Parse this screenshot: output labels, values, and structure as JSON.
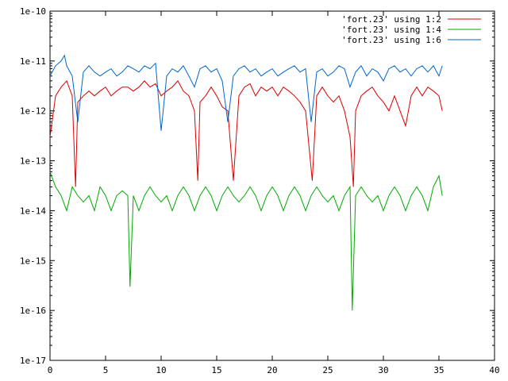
{
  "chart_data": {
    "type": "line",
    "title": "",
    "xlabel": "",
    "ylabel": "",
    "xlim": [
      0,
      40
    ],
    "ylim": [
      1e-17,
      1e-10
    ],
    "yscale": "log",
    "grid": false,
    "legend_position": "top-right",
    "x_ticks": [
      0,
      5,
      10,
      15,
      20,
      25,
      30,
      35,
      40
    ],
    "x_tick_labels": [
      "0",
      "5",
      "10",
      "15",
      "20",
      "25",
      "30",
      "35",
      "40"
    ],
    "y_ticks": [
      1e-17,
      1e-16,
      1e-15,
      1e-14,
      1e-13,
      1e-12,
      1e-11,
      1e-10
    ],
    "y_tick_labels": [
      "1e-17",
      "1e-16",
      "1e-15",
      "1e-14",
      "1e-13",
      "1e-12",
      "1e-11",
      "1e-10"
    ],
    "series": [
      {
        "name": "'fort.23' using 1:2",
        "color": "#dd0000",
        "x": [
          0.0,
          0.5,
          1.0,
          1.5,
          2.0,
          2.3,
          2.5,
          3.0,
          3.5,
          4.0,
          4.5,
          5.0,
          5.5,
          6.0,
          6.5,
          7.0,
          7.5,
          8.0,
          8.5,
          9.0,
          9.5,
          10.0,
          10.5,
          11.0,
          11.5,
          12.0,
          12.5,
          13.0,
          13.3,
          13.5,
          14.0,
          14.5,
          15.0,
          15.5,
          16.0,
          16.5,
          17.0,
          17.5,
          18.0,
          18.5,
          19.0,
          19.5,
          20.0,
          20.5,
          21.0,
          21.5,
          22.0,
          22.5,
          23.0,
          23.6,
          24.0,
          24.5,
          25.0,
          25.5,
          26.0,
          26.5,
          27.0,
          27.3,
          27.5,
          28.0,
          28.5,
          29.0,
          29.5,
          30.0,
          30.5,
          31.0,
          31.5,
          32.0,
          32.5,
          33.0,
          33.5,
          34.0,
          34.5,
          35.0,
          35.3
        ],
        "values": [
          3e-13,
          2e-12,
          3e-12,
          4e-12,
          2e-12,
          3e-14,
          1.5e-12,
          2e-12,
          2.5e-12,
          2e-12,
          2.5e-12,
          3e-12,
          2e-12,
          2.5e-12,
          3e-12,
          3e-12,
          2.5e-12,
          3e-12,
          4e-12,
          3e-12,
          3.5e-12,
          2e-12,
          2.5e-12,
          3e-12,
          4e-12,
          2.5e-12,
          2e-12,
          1e-12,
          4e-14,
          1.5e-12,
          2e-12,
          3e-12,
          2e-12,
          1.2e-12,
          1e-12,
          4e-14,
          2e-12,
          3e-12,
          3.5e-12,
          2e-12,
          3e-12,
          2.5e-12,
          3e-12,
          2e-12,
          3e-12,
          2.5e-12,
          2e-12,
          1.5e-12,
          1e-12,
          4e-14,
          2e-12,
          3e-12,
          2e-12,
          1.5e-12,
          2e-12,
          1e-12,
          3e-13,
          3e-14,
          1e-12,
          2e-12,
          2.5e-12,
          3e-12,
          2e-12,
          1.5e-12,
          1e-12,
          2e-12,
          1e-12,
          5e-13,
          2e-12,
          3e-12,
          2e-12,
          3e-12,
          2.5e-12,
          2e-12,
          1e-12
        ]
      },
      {
        "name": "'fort.23' using 1:4",
        "color": "#00aa00",
        "x": [
          0.0,
          0.5,
          1.0,
          1.5,
          2.0,
          2.5,
          3.0,
          3.5,
          4.0,
          4.5,
          5.0,
          5.5,
          6.0,
          6.5,
          7.0,
          7.2,
          7.5,
          8.0,
          8.5,
          9.0,
          9.5,
          10.0,
          10.5,
          11.0,
          11.5,
          12.0,
          12.5,
          13.0,
          13.5,
          14.0,
          14.5,
          15.0,
          15.5,
          16.0,
          16.5,
          17.0,
          17.5,
          18.0,
          18.5,
          19.0,
          19.5,
          20.0,
          20.5,
          21.0,
          21.5,
          22.0,
          22.5,
          23.0,
          23.5,
          24.0,
          24.5,
          25.0,
          25.5,
          26.0,
          26.5,
          27.0,
          27.2,
          27.5,
          28.0,
          28.5,
          29.0,
          29.5,
          30.0,
          30.5,
          31.0,
          31.5,
          32.0,
          32.5,
          33.0,
          33.5,
          34.0,
          34.5,
          35.0,
          35.3
        ],
        "values": [
          6e-14,
          3e-14,
          2e-14,
          1e-14,
          3e-14,
          2e-14,
          1.5e-14,
          2e-14,
          1e-14,
          3e-14,
          2e-14,
          1e-14,
          2e-14,
          2.5e-14,
          2e-14,
          3e-16,
          2e-14,
          1e-14,
          2e-14,
          3e-14,
          2e-14,
          1.5e-14,
          2e-14,
          1e-14,
          2e-14,
          3e-14,
          2e-14,
          1e-14,
          2e-14,
          3e-14,
          2e-14,
          1e-14,
          2e-14,
          3e-14,
          2e-14,
          1.5e-14,
          2e-14,
          3e-14,
          2e-14,
          1e-14,
          2e-14,
          3e-14,
          2e-14,
          1e-14,
          2e-14,
          3e-14,
          2e-14,
          1e-14,
          2e-14,
          3e-14,
          2e-14,
          1.5e-14,
          2e-14,
          1e-14,
          2e-14,
          3e-14,
          1e-16,
          2e-14,
          3e-14,
          2e-14,
          1.5e-14,
          2e-14,
          1e-14,
          2e-14,
          3e-14,
          2e-14,
          1e-14,
          2e-14,
          3e-14,
          2e-14,
          1e-14,
          3e-14,
          5e-14,
          2e-14
        ]
      },
      {
        "name": "'fort.23' using 1:6",
        "color": "#0066cc",
        "x": [
          0.0,
          0.5,
          1.0,
          1.3,
          1.5,
          2.0,
          2.5,
          3.0,
          3.5,
          4.0,
          4.5,
          5.0,
          5.5,
          6.0,
          6.5,
          7.0,
          7.5,
          8.0,
          8.5,
          9.0,
          9.5,
          10.0,
          10.5,
          11.0,
          11.5,
          12.0,
          12.5,
          13.0,
          13.5,
          14.0,
          14.5,
          15.0,
          15.5,
          16.0,
          16.5,
          17.0,
          17.5,
          18.0,
          18.5,
          19.0,
          19.5,
          20.0,
          20.5,
          21.0,
          21.5,
          22.0,
          22.5,
          23.0,
          23.5,
          24.0,
          24.5,
          25.0,
          25.5,
          26.0,
          26.5,
          27.0,
          27.5,
          28.0,
          28.5,
          29.0,
          29.5,
          30.0,
          30.5,
          31.0,
          31.5,
          32.0,
          32.5,
          33.0,
          33.5,
          34.0,
          34.5,
          35.0,
          35.3
        ],
        "values": [
          5e-12,
          8e-12,
          1e-11,
          1.3e-11,
          8e-12,
          5e-12,
          6e-13,
          6e-12,
          8e-12,
          6e-12,
          5e-12,
          6e-12,
          7e-12,
          5e-12,
          6e-12,
          8e-12,
          7e-12,
          6e-12,
          8e-12,
          7e-12,
          9e-12,
          4e-13,
          5e-12,
          7e-12,
          6e-12,
          8e-12,
          5e-12,
          3e-12,
          7e-12,
          8e-12,
          6e-12,
          7e-12,
          4e-12,
          6e-13,
          5e-12,
          7e-12,
          8e-12,
          6e-12,
          7e-12,
          5e-12,
          6e-12,
          7e-12,
          5e-12,
          6e-12,
          7e-12,
          8e-12,
          6e-12,
          7e-12,
          6e-13,
          6e-12,
          7e-12,
          5e-12,
          6e-12,
          8e-12,
          7e-12,
          3e-12,
          6e-12,
          8e-12,
          5e-12,
          7e-12,
          6e-12,
          4e-12,
          7e-12,
          8e-12,
          6e-12,
          7e-12,
          5e-12,
          7e-12,
          8e-12,
          6e-12,
          8e-12,
          5e-12,
          8e-12
        ]
      }
    ]
  }
}
